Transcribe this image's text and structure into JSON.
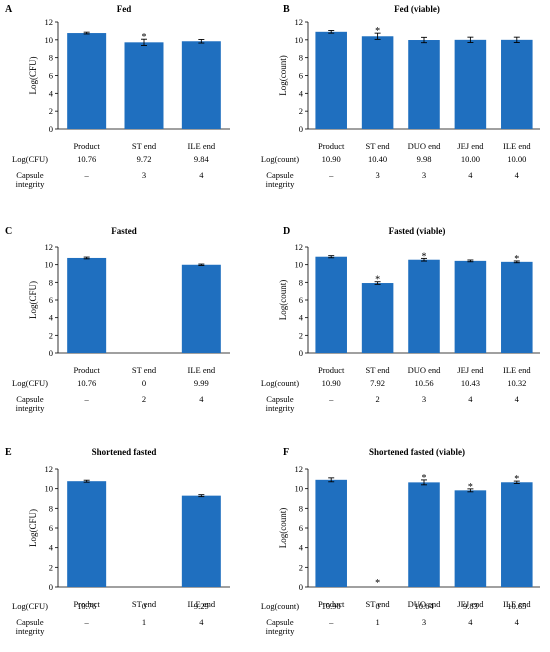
{
  "colors": {
    "bar": "#1f6fbf",
    "axis": "#000000"
  },
  "chart_data": [
    {
      "panel": "A",
      "title": "Fed",
      "type": "bar",
      "categories": [
        "Product",
        "ST end",
        "ILE end"
      ],
      "values": [
        10.76,
        9.72,
        9.84
      ],
      "errors": [
        0.1,
        0.35,
        0.2
      ],
      "stars": [
        false,
        true,
        false
      ],
      "ylabel": "Log(CFU)",
      "ylim": [
        0,
        12
      ],
      "yticks": [
        0,
        2,
        4,
        6,
        8,
        10,
        12
      ],
      "table": [
        {
          "label": [
            "Log(CFU)"
          ],
          "values": [
            "10.76",
            "9.72",
            "9.84"
          ]
        },
        {
          "label": [
            "Capsule",
            "integrity"
          ],
          "values": [
            "–",
            "3",
            "4"
          ]
        }
      ]
    },
    {
      "panel": "B",
      "title": "Fed (viable)",
      "type": "bar",
      "categories": [
        "Product",
        "ST end",
        "DUO end",
        "JEJ end",
        "ILE end"
      ],
      "values": [
        10.9,
        10.4,
        9.98,
        10.0,
        10.0
      ],
      "errors": [
        0.15,
        0.35,
        0.3,
        0.3,
        0.3
      ],
      "stars": [
        false,
        true,
        false,
        false,
        false
      ],
      "ylabel": "Log(count)",
      "ylim": [
        0,
        12
      ],
      "yticks": [
        0,
        2,
        4,
        6,
        8,
        10,
        12
      ],
      "table": [
        {
          "label": [
            "Log(count)"
          ],
          "values": [
            "10.90",
            "10.40",
            "9.98",
            "10.00",
            "10.00"
          ]
        },
        {
          "label": [
            "Capsule",
            "integrity"
          ],
          "values": [
            "–",
            "3",
            "3",
            "4",
            "4"
          ]
        }
      ]
    },
    {
      "panel": "C",
      "title": "Fasted",
      "type": "bar",
      "categories": [
        "Product",
        "ST end",
        "ILE end"
      ],
      "values": [
        10.76,
        0,
        9.99
      ],
      "errors": [
        0.1,
        0,
        0.08
      ],
      "stars": [
        false,
        false,
        false
      ],
      "ylabel": "Log(CFU)",
      "ylim": [
        0,
        12
      ],
      "yticks": [
        0,
        2,
        4,
        6,
        8,
        10,
        12
      ],
      "table": [
        {
          "label": [
            "Log(CFU)"
          ],
          "values": [
            "10.76",
            "0",
            "9.99"
          ]
        },
        {
          "label": [
            "Capsule",
            "integrity"
          ],
          "values": [
            "–",
            "2",
            "4"
          ]
        }
      ]
    },
    {
      "panel": "D",
      "title": "Fasted (viable)",
      "type": "bar",
      "categories": [
        "Product",
        "ST end",
        "DUO end",
        "JEJ end",
        "ILE end"
      ],
      "values": [
        10.9,
        7.92,
        10.56,
        10.43,
        10.32
      ],
      "errors": [
        0.12,
        0.15,
        0.15,
        0.1,
        0.1
      ],
      "stars": [
        false,
        true,
        true,
        false,
        true
      ],
      "ylabel": "Log(count)",
      "ylim": [
        0,
        12
      ],
      "yticks": [
        0,
        2,
        4,
        6,
        8,
        10,
        12
      ],
      "table": [
        {
          "label": [
            "Log(count)"
          ],
          "values": [
            "10.90",
            "7.92",
            "10.56",
            "10.43",
            "10.32"
          ]
        },
        {
          "label": [
            "Capsule",
            "integrity"
          ],
          "values": [
            "–",
            "2",
            "3",
            "4",
            "4"
          ]
        }
      ]
    },
    {
      "panel": "E",
      "title": "Shortened fasted",
      "type": "bar",
      "categories": [
        "Product",
        "ST end",
        "ILE end"
      ],
      "values": [
        10.76,
        0,
        9.29
      ],
      "errors": [
        0.1,
        0,
        0.1
      ],
      "stars": [
        false,
        false,
        false
      ],
      "ylabel": "Log(CFU)",
      "ylim": [
        0,
        12
      ],
      "yticks": [
        0,
        2,
        4,
        6,
        8,
        10,
        12
      ],
      "table": [
        {
          "label": [
            "Log(CFU)"
          ],
          "values": [
            "10.76",
            "0",
            "9.29"
          ]
        },
        {
          "label": [
            "Capsule",
            "integrity"
          ],
          "values": [
            "–",
            "1",
            "4"
          ]
        }
      ]
    },
    {
      "panel": "F",
      "title": "Shortened fasted (viable)",
      "type": "bar",
      "categories": [
        "Product",
        "ST end",
        "DUO end",
        "JEJ end",
        "ILE end"
      ],
      "values": [
        10.9,
        0,
        10.64,
        9.83,
        10.65
      ],
      "errors": [
        0.2,
        0,
        0.25,
        0.15,
        0.12
      ],
      "stars": [
        false,
        true,
        true,
        true,
        true
      ],
      "ylabel": "Log(count)",
      "ylim": [
        0,
        12
      ],
      "yticks": [
        0,
        2,
        4,
        6,
        8,
        10,
        12
      ],
      "table": [
        {
          "label": [
            "Log(count)"
          ],
          "values": [
            "10.90",
            "0",
            "10.64",
            "9.83",
            "10.65"
          ]
        },
        {
          "label": [
            "Capsule",
            "integrity"
          ],
          "values": [
            "–",
            "1",
            "3",
            "4",
            "4"
          ]
        }
      ]
    }
  ]
}
